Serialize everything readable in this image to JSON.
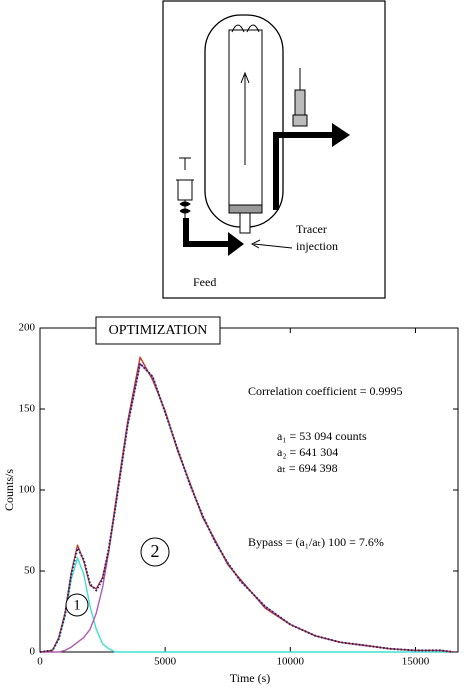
{
  "diagram": {
    "labels": [
      "Tracer",
      "injection",
      "Feed"
    ]
  },
  "chart_data": {
    "type": "line",
    "title": "OPTIMIZATION",
    "x_label": "Time (s)",
    "y_label": "Counts/s",
    "annotations": [
      "Correlation coefficient = 0.9995",
      "a₁ =  53 094 counts",
      "a₂ = 641 304",
      "aₜ = 694 398",
      "Bypass = (a₁/aₜ) 100 = 7.6%"
    ],
    "peak_labels": [
      "1",
      "2"
    ],
    "x": [
      0,
      500,
      750,
      1000,
      1250,
      1500,
      1750,
      2000,
      2250,
      2500,
      2750,
      3000,
      3500,
      4000,
      4500,
      5000,
      5500,
      6000,
      6500,
      7000,
      7500,
      8000,
      9000,
      10000,
      11000,
      12000,
      13000,
      14000,
      15000,
      16000,
      16500
    ],
    "series": [
      {
        "color": "#40e0d0",
        "style": "solid",
        "values": [
          0,
          1,
          8,
          22,
          45,
          58,
          48,
          28,
          14,
          5,
          2,
          0,
          0,
          0,
          0,
          0,
          0,
          0,
          0,
          0,
          0,
          0,
          0,
          0,
          0,
          0,
          0,
          0,
          0,
          0,
          0
        ]
      },
      {
        "color": "#b05cb0",
        "style": "solid",
        "values": [
          0,
          0,
          0,
          1,
          3,
          6,
          9,
          14,
          24,
          40,
          62,
          88,
          140,
          178,
          170,
          148,
          125,
          103,
          84,
          68,
          55,
          44,
          28,
          17,
          10,
          6,
          4,
          2,
          1,
          1,
          0
        ]
      },
      {
        "color": "#c0392b",
        "style": "solid",
        "values": [
          0,
          1,
          9,
          24,
          49,
          66,
          56,
          41,
          39,
          46,
          63,
          90,
          142,
          182,
          168,
          149,
          124,
          104,
          83,
          69,
          54,
          45,
          27,
          17,
          10,
          6,
          4,
          2,
          1,
          1,
          0
        ]
      },
      {
        "color": "#1a237e",
        "style": "dotted",
        "values": [
          0,
          1,
          8,
          23,
          48,
          64,
          57,
          42,
          38,
          45,
          64,
          88,
          140,
          178,
          170,
          148,
          125,
          103,
          84,
          68,
          55,
          44,
          28,
          17,
          10,
          6,
          4,
          2,
          1,
          1,
          0
        ]
      }
    ],
    "xlim": [
      0,
      16700
    ],
    "ylim": [
      0,
      200
    ],
    "xticks": [
      0,
      5000,
      10000,
      15000
    ],
    "yticks": [
      0,
      50,
      100,
      150,
      200
    ]
  }
}
